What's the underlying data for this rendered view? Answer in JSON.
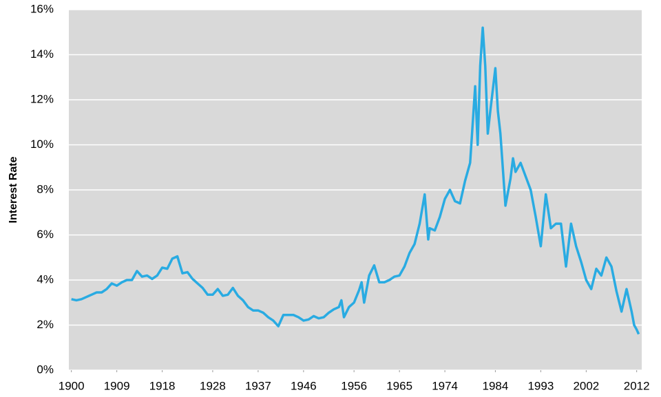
{
  "chart_data": {
    "type": "line",
    "y_label": "Interest Rate",
    "x": [
      1900,
      1901,
      1902,
      1903,
      1904,
      1905,
      1906,
      1907,
      1908,
      1909,
      1910,
      1911,
      1912,
      1913,
      1914,
      1915,
      1916,
      1917,
      1918,
      1919,
      1920,
      1921,
      1922,
      1923,
      1924,
      1925,
      1926,
      1927,
      1928,
      1929,
      1930,
      1931,
      1932,
      1933,
      1934,
      1935,
      1936,
      1937,
      1938,
      1939,
      1940,
      1941,
      1942,
      1943,
      1944,
      1945,
      1946,
      1947,
      1948,
      1949,
      1950,
      1951,
      1952,
      1953,
      1953.5,
      1954,
      1955,
      1956,
      1957,
      1957.5,
      1958,
      1959,
      1960,
      1961,
      1962,
      1963,
      1964,
      1965,
      1966,
      1967,
      1968,
      1969,
      1970,
      1970.7,
      1971,
      1972,
      1973,
      1974,
      1975,
      1976,
      1977,
      1978,
      1979,
      1980,
      1980.5,
      1981,
      1981.5,
      1982,
      1982.5,
      1983,
      1984,
      1984.5,
      1985,
      1986,
      1987,
      1987.5,
      1988,
      1989,
      1990,
      1991,
      1992,
      1993,
      1994,
      1995,
      1996,
      1997,
      1998,
      1999,
      2000,
      2001,
      2002,
      2003,
      2004,
      2005,
      2006,
      2007,
      2008,
      2009,
      2010,
      2011,
      2011.5,
      2012,
      2012.4
    ],
    "series": [
      {
        "name": "Interest Rate",
        "color": "#29abe2",
        "values": [
          3.15,
          3.1,
          3.15,
          3.25,
          3.35,
          3.45,
          3.45,
          3.6,
          3.85,
          3.75,
          3.9,
          4.0,
          4.0,
          4.4,
          4.15,
          4.2,
          4.05,
          4.2,
          4.55,
          4.5,
          4.95,
          5.05,
          4.3,
          4.35,
          4.05,
          3.85,
          3.65,
          3.35,
          3.35,
          3.6,
          3.3,
          3.35,
          3.65,
          3.3,
          3.1,
          2.8,
          2.65,
          2.65,
          2.55,
          2.35,
          2.2,
          1.95,
          2.45,
          2.45,
          2.45,
          2.35,
          2.2,
          2.25,
          2.4,
          2.3,
          2.35,
          2.55,
          2.7,
          2.8,
          3.1,
          2.35,
          2.8,
          3.0,
          3.55,
          3.9,
          3.0,
          4.2,
          4.65,
          3.9,
          3.9,
          4.0,
          4.15,
          4.2,
          4.6,
          5.2,
          5.6,
          6.5,
          7.8,
          5.8,
          6.3,
          6.2,
          6.8,
          7.6,
          8.0,
          7.5,
          7.4,
          8.4,
          9.2,
          12.6,
          10.0,
          13.5,
          15.2,
          13.5,
          10.5,
          11.5,
          13.4,
          11.5,
          10.5,
          7.3,
          8.5,
          9.4,
          8.8,
          9.2,
          8.6,
          8.0,
          6.8,
          5.5,
          7.8,
          6.3,
          6.5,
          6.5,
          4.6,
          6.5,
          5.5,
          4.8,
          4.0,
          3.6,
          4.5,
          4.2,
          5.0,
          4.6,
          3.5,
          2.6,
          3.6,
          2.6,
          2.0,
          1.8,
          1.6
        ]
      }
    ],
    "xlim": [
      1899.5,
      2013
    ],
    "xticks": [
      1900,
      1909,
      1918,
      1928,
      1937,
      1946,
      1956,
      1965,
      1974,
      1984,
      1993,
      2002,
      2012
    ],
    "ylim": [
      0,
      16
    ],
    "yticks": [
      {
        "value": 0,
        "label": "0%"
      },
      {
        "value": 2,
        "label": "2%"
      },
      {
        "value": 4,
        "label": "4%"
      },
      {
        "value": 6,
        "label": "6%"
      },
      {
        "value": 8,
        "label": "8%"
      },
      {
        "value": 10,
        "label": "10%"
      },
      {
        "value": 12,
        "label": "12%"
      },
      {
        "value": 14,
        "label": "14%"
      },
      {
        "value": 16,
        "label": "16%"
      }
    ],
    "grid": true
  }
}
